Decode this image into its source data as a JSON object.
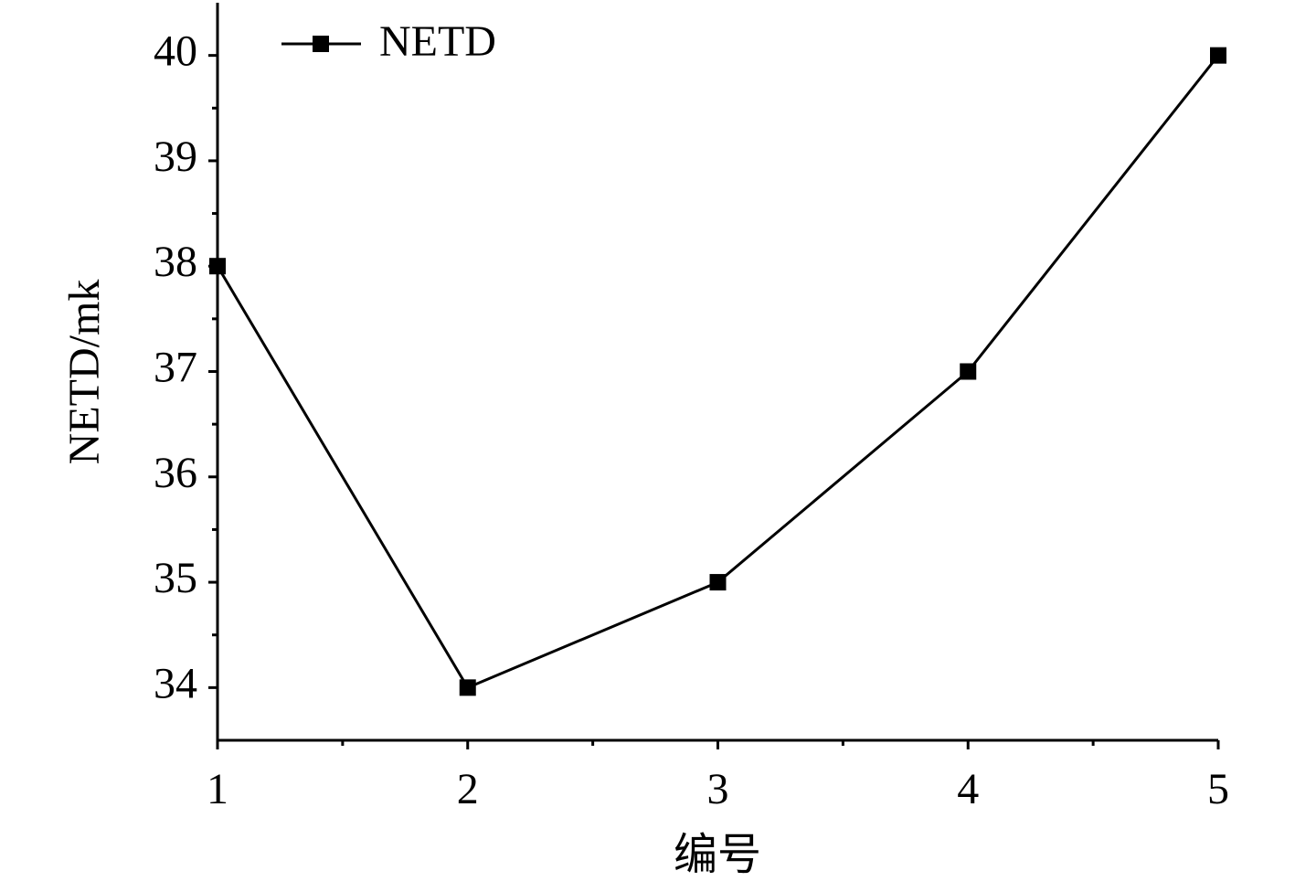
{
  "chart_data": {
    "type": "line",
    "x": [
      1,
      2,
      3,
      4,
      5
    ],
    "series": [
      {
        "name": "NETD",
        "color": "#000000",
        "values": [
          38,
          34,
          35,
          37,
          40
        ]
      }
    ],
    "xlabel": "编号",
    "ylabel": "NETD/mk",
    "xlim": [
      1,
      5
    ],
    "xticks": [
      1,
      2,
      3,
      4,
      5
    ],
    "ylim": [
      33.5,
      40.5
    ],
    "yticks": [
      34,
      35,
      36,
      37,
      38,
      39,
      40
    ],
    "grid": false,
    "legend": "upper left"
  }
}
